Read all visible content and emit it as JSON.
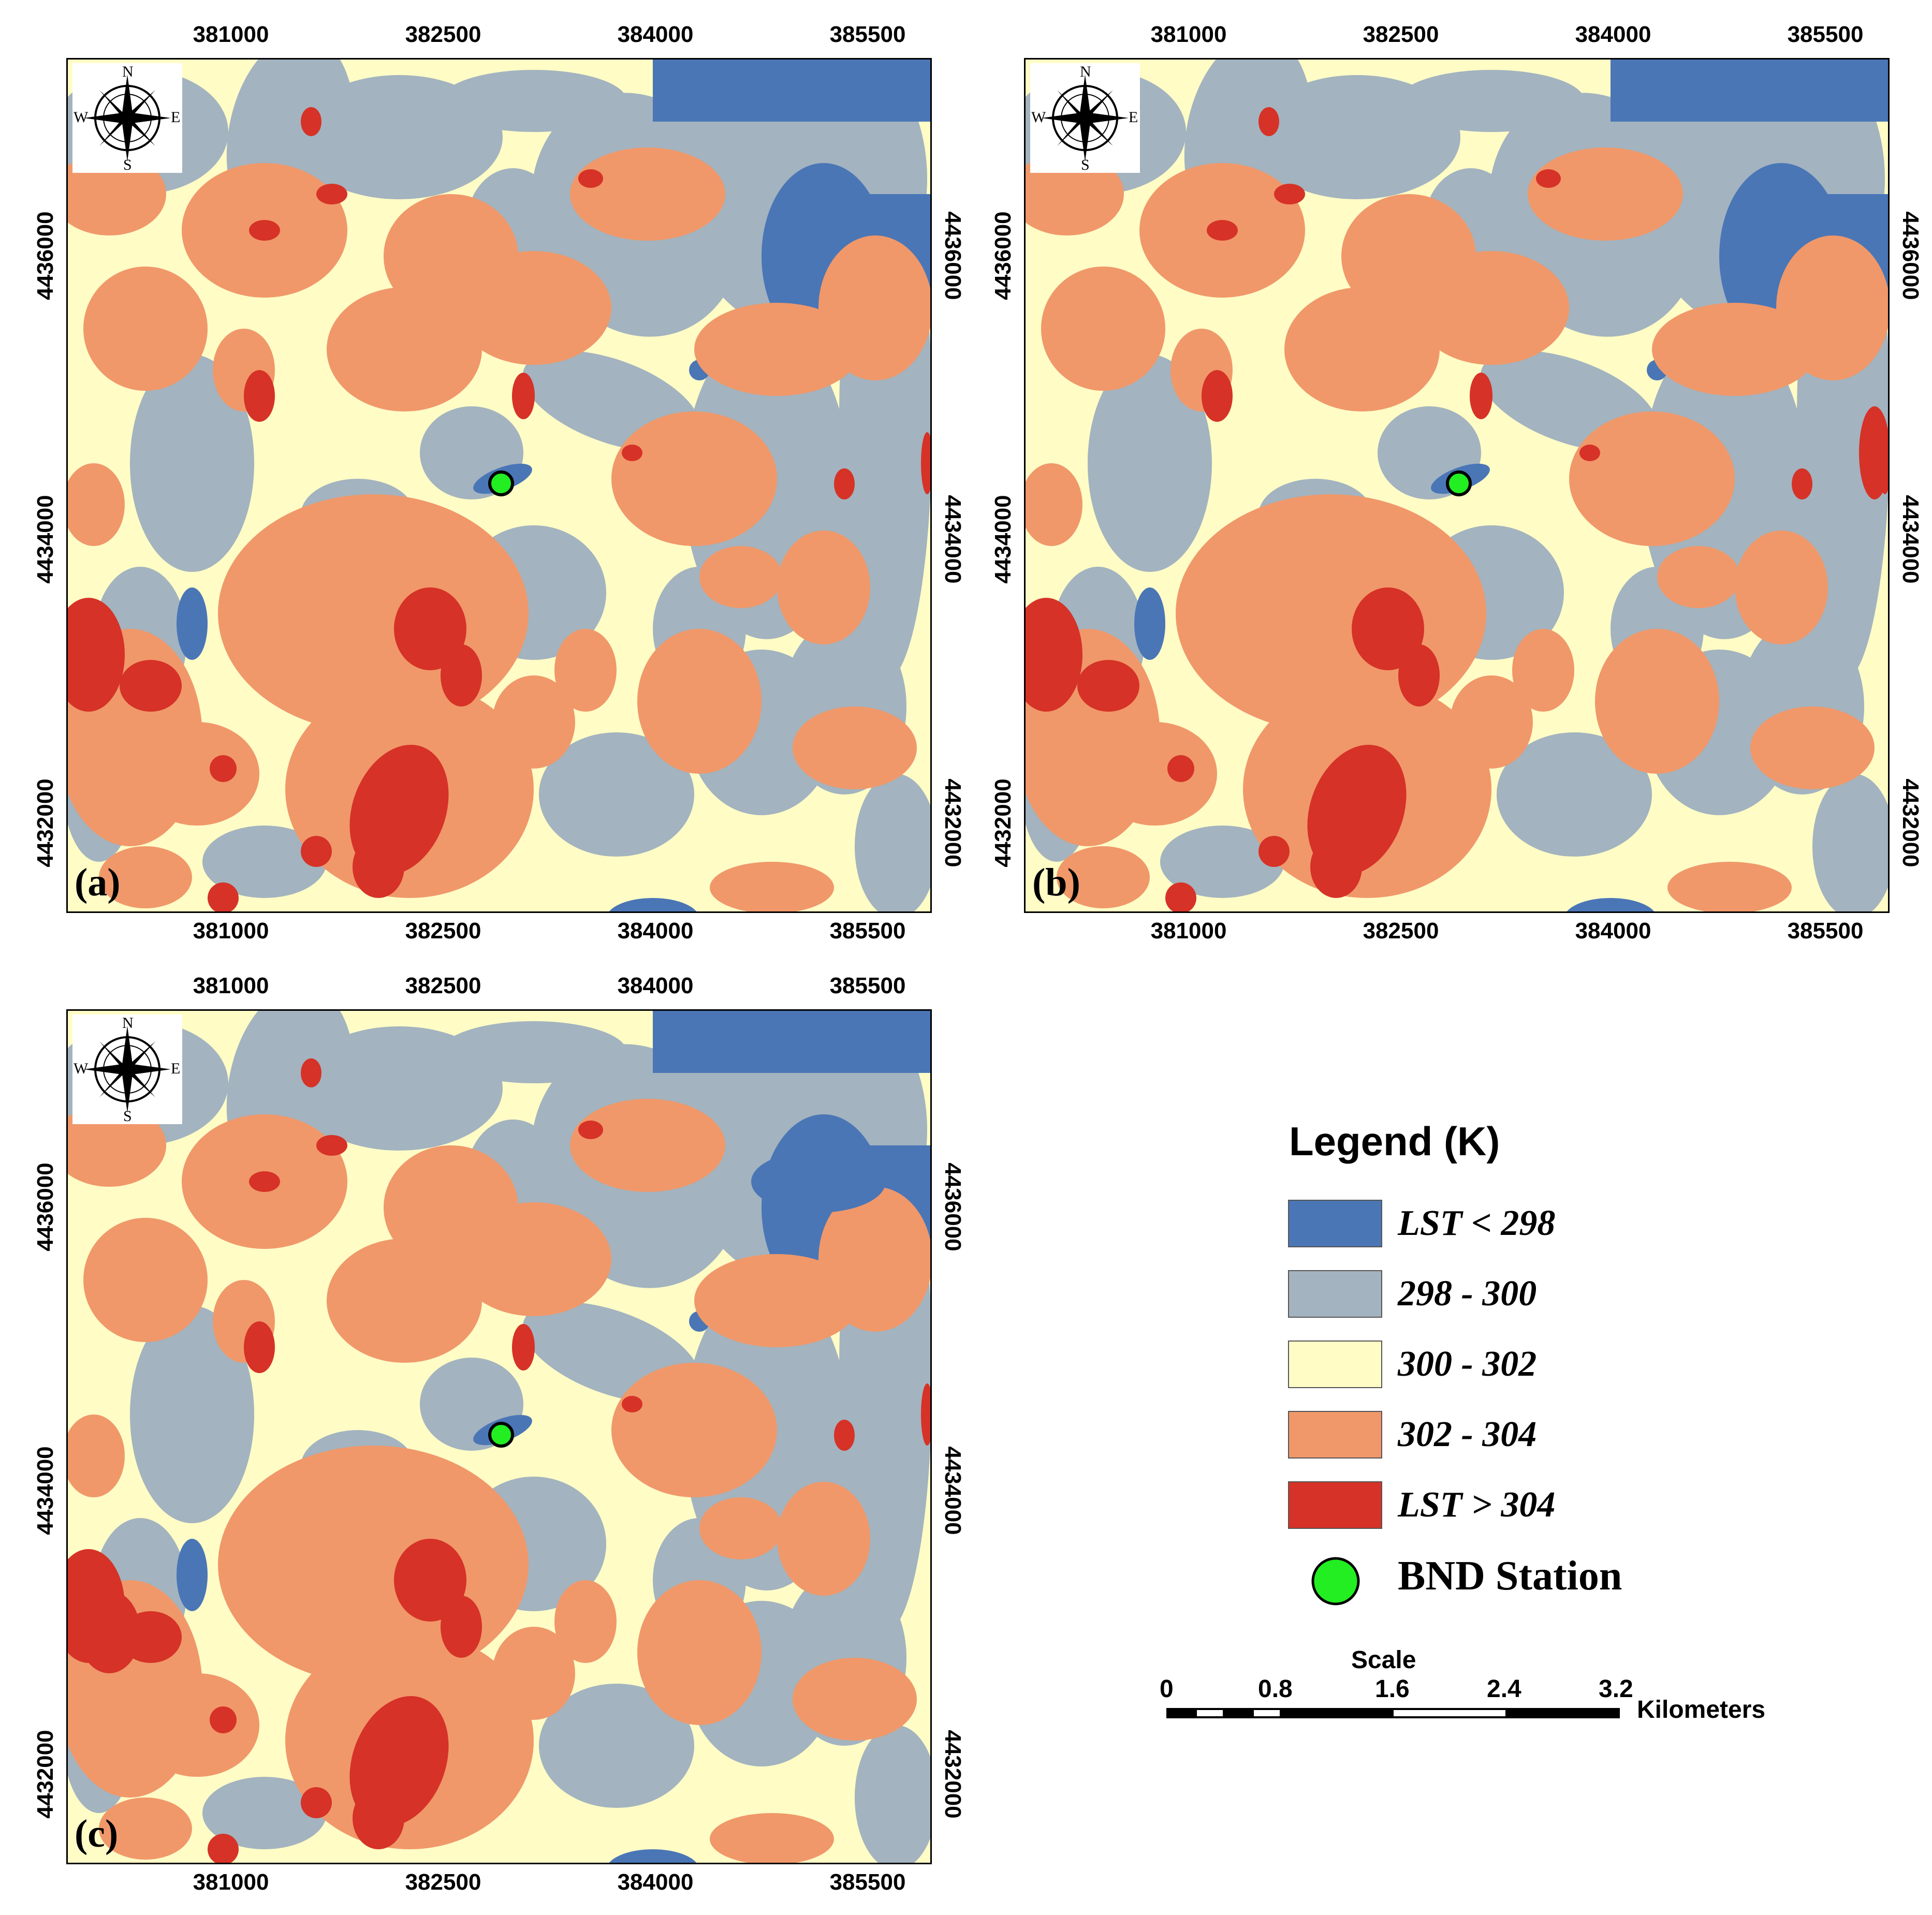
{
  "panels": [
    {
      "label": "(a)"
    },
    {
      "label": "(b)"
    },
    {
      "label": "(c)"
    }
  ],
  "axes": {
    "x_ticks": [
      "381000",
      "382500",
      "384000",
      "385500"
    ],
    "y_ticks": [
      "4436000",
      "4434000",
      "4432000"
    ]
  },
  "compass": {
    "n": "N",
    "s": "S",
    "e": "E",
    "w": "W"
  },
  "legend": {
    "title": "Legend (K)",
    "items": [
      {
        "label": "LST < 298",
        "color": "#4a76b6"
      },
      {
        "label": "298 - 300",
        "color": "#a3b3bf"
      },
      {
        "label": "300 - 302",
        "color": "#fffcc6"
      },
      {
        "label": "302 - 304",
        "color": "#f0986a"
      },
      {
        "label": "LST > 304",
        "color": "#d63227"
      }
    ],
    "station": {
      "label": "BND Station",
      "color": "#22ee22"
    }
  },
  "scale": {
    "title": "Scale",
    "ticks": [
      "0",
      "0.8",
      "1.6",
      "2.4",
      "3.2"
    ],
    "unit": "Kilometers"
  }
}
